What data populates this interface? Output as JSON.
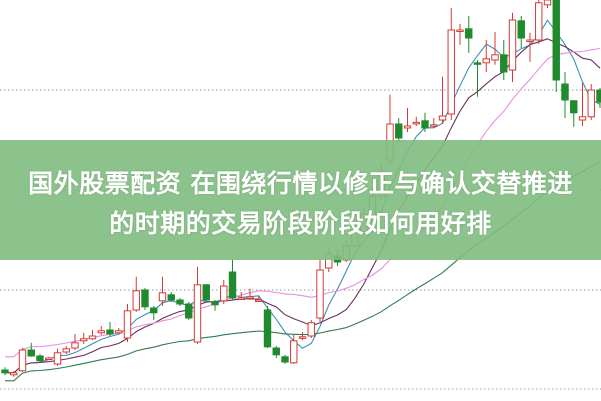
{
  "headline": {
    "line1": "国外股票配资 在围绕行情以修正与确认交替推进",
    "line2": "的时期的交易阶段阶段如何用好排"
  },
  "colors": {
    "band": "#80bc80",
    "up": "#d43a34",
    "down": "#1f8a2e",
    "ma_short": "#3c90b4",
    "ma_mid": "#6b2f5e",
    "ma_long": "#e690e2",
    "ma_longest": "#2e7d4f",
    "grid": "#9a9a9a"
  },
  "chart_data": {
    "type": "candlestick",
    "note_units": "relative price (no axis shown)",
    "grid": "dotted horizontal",
    "candles": [
      [
        7.5,
        6.8,
        8.2,
        6.2
      ],
      [
        6.3,
        6.8,
        7.2,
        5.8
      ],
      [
        7.3,
        12.5,
        13,
        7
      ],
      [
        12.5,
        11,
        14.3,
        10.8
      ],
      [
        11,
        9.8,
        11.5,
        9.5
      ],
      [
        10.3,
        10.5,
        10.8,
        10
      ],
      [
        9,
        11.8,
        12.8,
        8.5
      ],
      [
        12,
        12.8,
        13.5,
        11.5
      ],
      [
        13,
        14.3,
        16.5,
        12.5
      ],
      [
        14.8,
        15.3,
        16.8,
        14
      ],
      [
        15.3,
        16,
        17.5,
        15
      ],
      [
        16.8,
        17.3,
        18.5,
        16.3
      ],
      [
        17.5,
        16.5,
        19.5,
        16
      ],
      [
        16.8,
        17.3,
        18,
        16.5
      ],
      [
        15.5,
        22.3,
        24,
        14.5
      ],
      [
        22.5,
        27.3,
        30.8,
        22
      ],
      [
        27.5,
        23.3,
        28,
        22.5
      ],
      [
        23,
        21.8,
        23.5,
        20
      ],
      [
        24.8,
        26.8,
        30.8,
        23.5
      ],
      [
        26.3,
        25,
        27,
        24.5
      ],
      [
        25,
        24,
        25.5,
        23.5
      ],
      [
        24,
        20.5,
        24.5,
        20
      ],
      [
        14.5,
        28.8,
        33.3,
        14
      ],
      [
        28.8,
        25,
        29,
        24.5
      ],
      [
        24.5,
        23.8,
        25,
        22.3
      ],
      [
        24.8,
        28.5,
        30,
        24
      ],
      [
        32,
        25.5,
        35,
        25
      ],
      [
        25.5,
        25.5,
        27,
        25
      ],
      [
        25.8,
        25.8,
        27.8,
        25.3
      ],
      [
        25,
        25,
        26,
        24.5
      ],
      [
        22.5,
        13.3,
        23.5,
        13
      ],
      [
        13,
        11.3,
        13.5,
        10.5
      ],
      [
        10.8,
        9.5,
        11.3,
        9
      ],
      [
        9.3,
        14.8,
        16.3,
        9
      ],
      [
        15.8,
        15.8,
        17,
        15
      ],
      [
        16,
        19.3,
        20,
        15.5
      ],
      [
        20.5,
        32.5,
        35.5,
        19.5
      ],
      [
        33,
        36.5,
        38,
        32
      ],
      [
        36,
        34.5,
        37.5,
        33.5
      ],
      [
        35,
        38.5,
        40,
        34.5
      ],
      [
        38.5,
        42,
        44,
        38
      ],
      [
        42,
        46.5,
        48,
        41.5
      ],
      [
        46,
        51,
        53,
        45.5
      ],
      [
        51,
        57,
        59,
        50
      ],
      [
        60,
        69,
        76.3,
        59
      ],
      [
        69,
        65.5,
        70.5,
        64.5
      ],
      [
        68,
        68.5,
        73,
        67
      ],
      [
        69.2,
        69.4,
        70.8,
        68.5
      ],
      [
        69.8,
        68,
        71.8,
        67
      ],
      [
        68.8,
        68.8,
        70.5,
        68
      ],
      [
        70,
        71,
        80.8,
        69
      ],
      [
        71.5,
        92.5,
        98,
        70
      ],
      [
        92.5,
        92.5,
        94,
        88.8
      ],
      [
        92.8,
        90.5,
        96,
        86.8
      ],
      [
        84.3,
        84,
        85,
        75.8
      ],
      [
        84.3,
        85.3,
        90,
        82
      ],
      [
        85,
        86.3,
        92,
        83.8
      ],
      [
        86.3,
        82,
        90,
        80
      ],
      [
        82.5,
        95,
        96.8,
        79.5
      ],
      [
        94.8,
        90.5,
        96,
        88
      ],
      [
        90,
        90,
        91.8,
        84.5
      ],
      [
        90,
        99.3,
        100,
        89
      ],
      [
        98.8,
        100,
        100,
        98
      ],
      [
        100,
        80,
        100,
        77
      ],
      [
        79,
        75,
        82,
        70.5
      ],
      [
        74.8,
        71.8,
        75,
        68.3
      ],
      [
        70,
        70.8,
        79.3,
        68.5
      ],
      [
        70.8,
        77.5,
        79,
        70
      ],
      [
        77.5,
        74.5,
        78,
        73
      ]
    ]
  }
}
